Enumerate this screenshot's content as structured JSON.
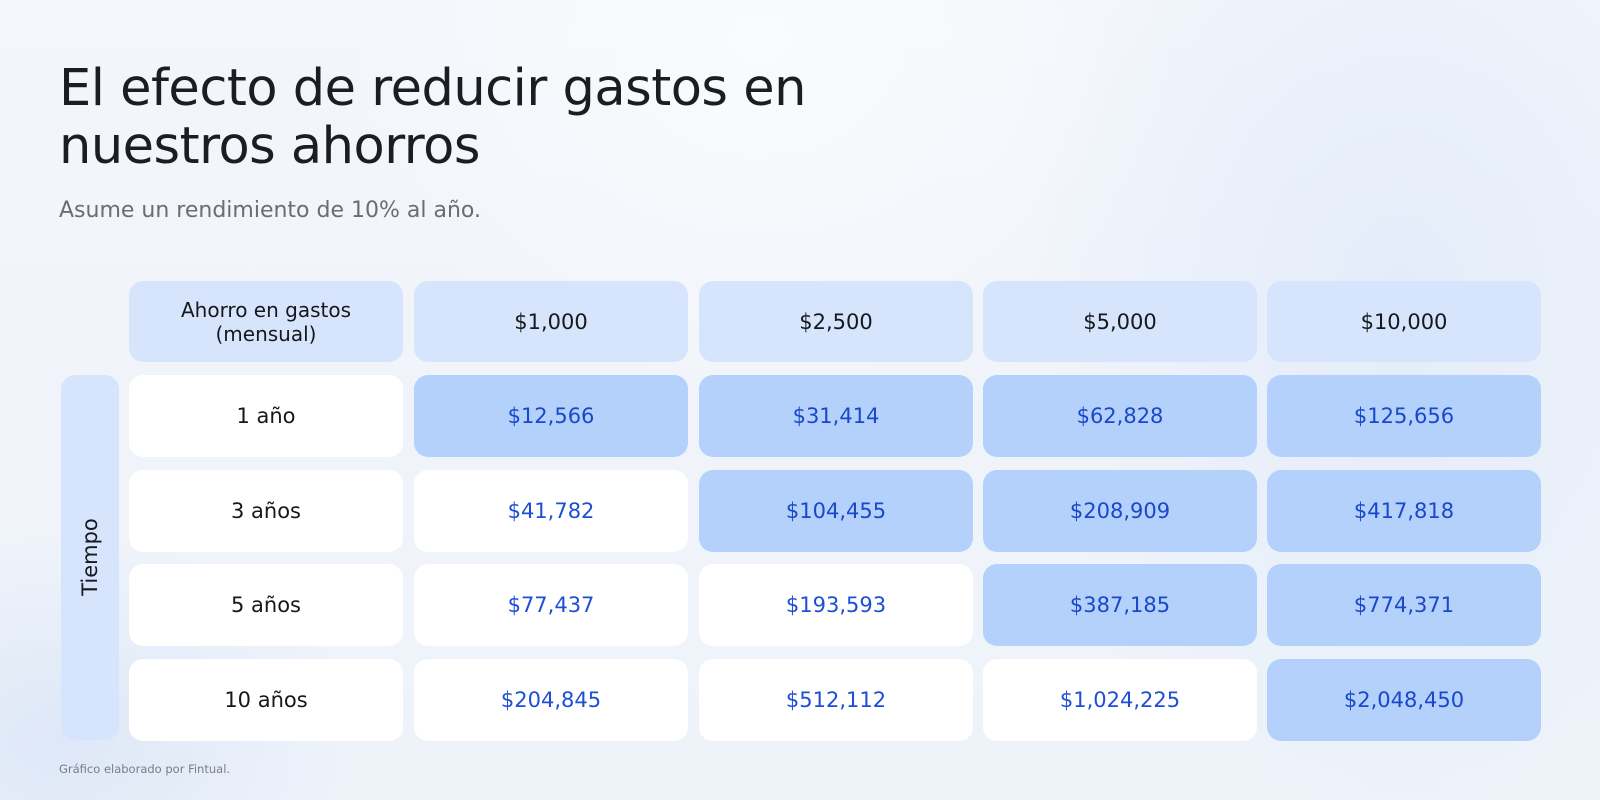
{
  "title": "El efecto de reducir gastos en nuestros ahorros",
  "subtitle": "Asume un rendimiento de 10% al año.",
  "footer": "Gráfico elaborado por Fintual.",
  "colors": {
    "header_bg": "#d6e5fc",
    "highlight_bg": "#b3d1fb",
    "plain_bg": "#ffffff",
    "value_text": "#1d4fd6",
    "label_text": "#16181c"
  },
  "chart_data": {
    "type": "table",
    "title": "El efecto de reducir gastos en nuestros ahorros",
    "subtitle": "Asume un rendimiento de 10% al año.",
    "corner_header": [
      "Ahorro en gastos",
      "(mensual)"
    ],
    "row_axis_label": "Tiempo",
    "columns": [
      "$1,000",
      "$2,500",
      "$5,000",
      "$10,000"
    ],
    "rows": [
      {
        "label": "1 año",
        "values": [
          "$12,566",
          "$31,414",
          "$62,828",
          "$125,656"
        ],
        "highlighted": [
          true,
          true,
          true,
          true
        ]
      },
      {
        "label": "3 años",
        "values": [
          "$41,782",
          "$104,455",
          "$208,909",
          "$417,818"
        ],
        "highlighted": [
          false,
          true,
          true,
          true
        ]
      },
      {
        "label": "5 años",
        "values": [
          "$77,437",
          "$193,593",
          "$387,185",
          "$774,371"
        ],
        "highlighted": [
          false,
          false,
          true,
          true
        ]
      },
      {
        "label": "10 años",
        "values": [
          "$204,845",
          "$512,112",
          "$1,024,225",
          "$2,048,450"
        ],
        "highlighted": [
          false,
          false,
          false,
          true
        ]
      }
    ]
  }
}
